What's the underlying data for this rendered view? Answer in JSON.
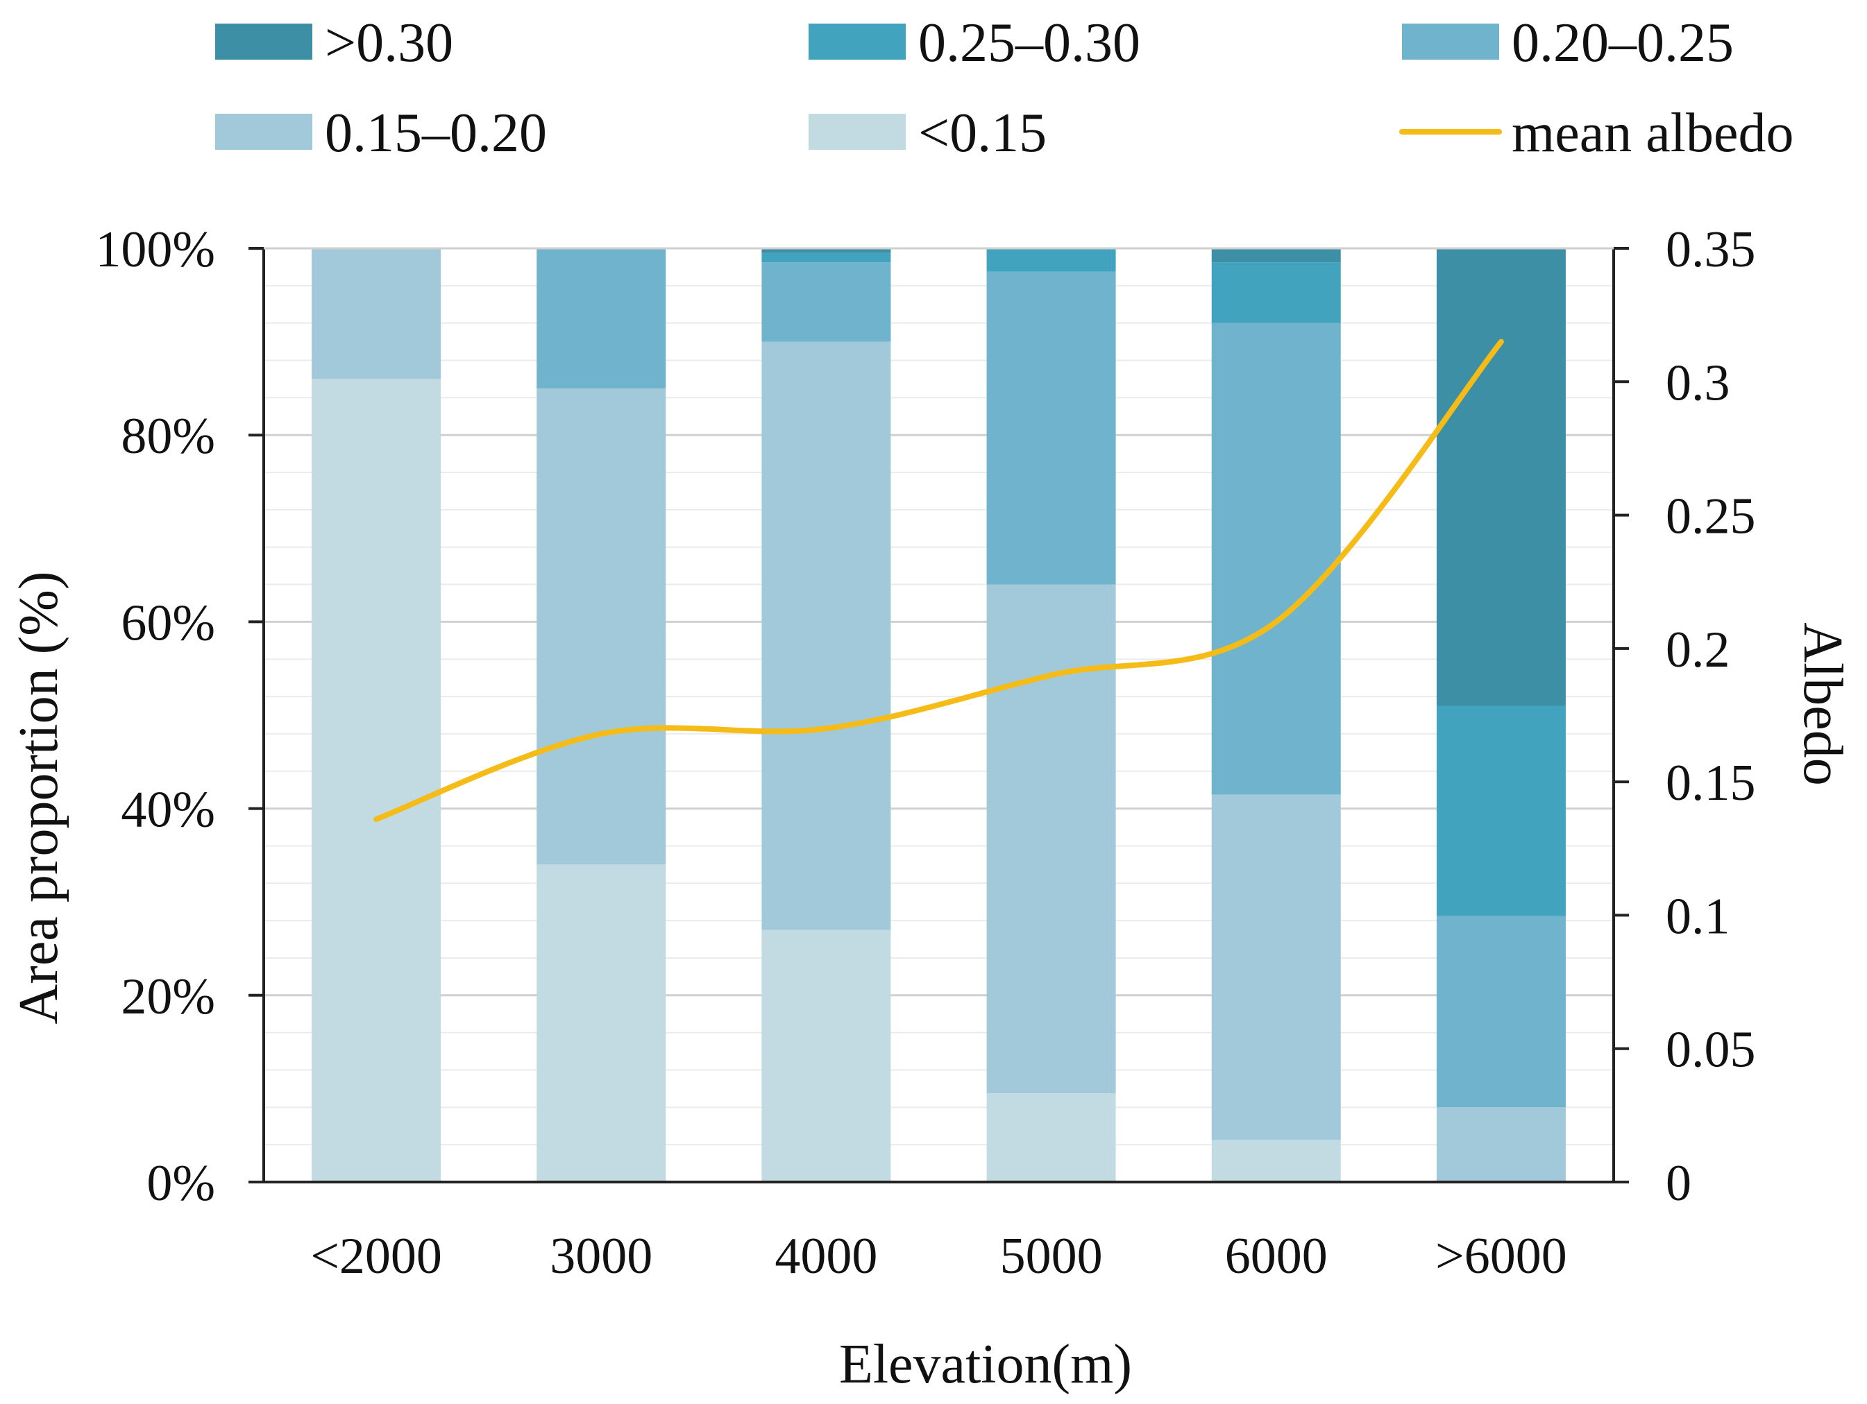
{
  "chart_data": {
    "type": "bar",
    "stacked": true,
    "percent_stacked": true,
    "categories": [
      "<2000",
      "3000",
      "4000",
      "5000",
      "6000",
      ">6000"
    ],
    "series": [
      {
        "name": "<0.15",
        "color": "#c2dbe3",
        "values": [
          86,
          34,
          27,
          9.5,
          4.5,
          0
        ]
      },
      {
        "name": "0.15–0.20",
        "color": "#a2c9d9",
        "values": [
          14,
          51,
          63,
          54.5,
          37,
          8
        ]
      },
      {
        "name": "0.20–0.25",
        "color": "#6fb4cc",
        "values": [
          0,
          15,
          8.5,
          33.5,
          50.5,
          20.5
        ]
      },
      {
        "name": "0.25–0.30",
        "color": "#41a3bd",
        "values": [
          0,
          0,
          1,
          2.5,
          6.5,
          22.5
        ]
      },
      {
        "name": ">0.30",
        "color": "#3d8fa6",
        "values": [
          0,
          0,
          0.5,
          0,
          1.5,
          49
        ]
      }
    ],
    "line_series": {
      "name": "mean albedo",
      "color": "#f5bb17",
      "axis": "right",
      "values": [
        0.136,
        0.168,
        0.17,
        0.19,
        0.21,
        0.315
      ]
    },
    "left_axis": {
      "label": "Area proportion (%)",
      "ylim": [
        0,
        100
      ],
      "ticks": [
        0,
        20,
        40,
        60,
        80,
        100
      ],
      "tick_labels": [
        "0%",
        "20%",
        "40%",
        "60%",
        "80%",
        "100%"
      ],
      "minor_step": 4
    },
    "right_axis": {
      "label": "Albedo",
      "ylim": [
        0,
        0.35
      ],
      "ticks": [
        0,
        0.05,
        0.1,
        0.15,
        0.2,
        0.25,
        0.3,
        0.35
      ],
      "tick_labels": [
        "0",
        "0.05",
        "0.1",
        "0.15",
        "0.2",
        "0.25",
        "0.3",
        "0.35"
      ]
    },
    "xlabel": "Elevation(m)",
    "legend": {
      "placement": "top",
      "entries": [
        {
          "label": ">0.30",
          "color": "#3d8fa6",
          "kind": "swatch"
        },
        {
          "label": "0.25–0.30",
          "color": "#41a3bd",
          "kind": "swatch"
        },
        {
          "label": "0.20–0.25",
          "color": "#6fb4cc",
          "kind": "swatch"
        },
        {
          "label": "0.15–0.20",
          "color": "#a2c9d9",
          "kind": "swatch"
        },
        {
          "label": "<0.15",
          "color": "#c2dbe3",
          "kind": "swatch"
        },
        {
          "label": "mean albedo",
          "color": "#f5bb17",
          "kind": "line"
        }
      ]
    },
    "grid": true
  }
}
